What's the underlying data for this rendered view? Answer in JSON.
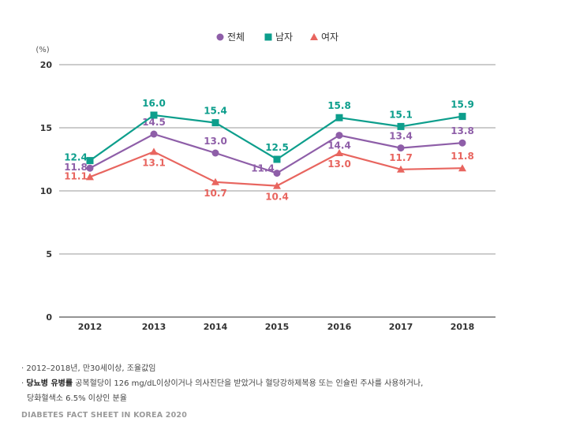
{
  "chart_data": {
    "type": "line",
    "title": "",
    "ylabel": "(%)",
    "xlabel": "",
    "ylim": [
      0,
      20
    ],
    "yticks": [
      "0",
      "5",
      "10",
      "15",
      "20"
    ],
    "categories": [
      "2012",
      "2013",
      "2014",
      "2015",
      "2016",
      "2017",
      "2018"
    ],
    "legend_position": "top-center",
    "series": [
      {
        "name": "전체",
        "color": "#8e5ea8",
        "marker": "circle",
        "values": [
          11.8,
          14.5,
          13.0,
          11.4,
          14.4,
          13.4,
          13.8
        ],
        "labels": [
          "11.8",
          "14.5",
          "13.0",
          "11.4",
          "14.4",
          "13.4",
          "13.8"
        ]
      },
      {
        "name": "남자",
        "color": "#0d9e8c",
        "marker": "square",
        "values": [
          12.4,
          16.0,
          15.4,
          12.5,
          15.8,
          15.1,
          15.9
        ],
        "labels": [
          "12.4",
          "16.0",
          "15.4",
          "12.5",
          "15.8",
          "15.1",
          "15.9"
        ]
      },
      {
        "name": "여자",
        "color": "#e8655f",
        "marker": "triangle",
        "values": [
          11.1,
          13.1,
          10.7,
          10.4,
          13.0,
          11.7,
          11.8
        ],
        "labels": [
          "11.1",
          "13.1",
          "10.7",
          "10.4",
          "13.0",
          "11.7",
          "11.8"
        ]
      }
    ]
  },
  "notes": {
    "line1": "· 2012–2018년, 만30세이상, 조율값임",
    "line2_prefix": "· ",
    "line2_bold": "당뇨병 유병률",
    "line2_rest": " 공복혈당이 126 mg/dL이상이거나 의사진단을 받았거나 혈당강하제복용 또는 인슐린 주사를 사용하거나,",
    "line3": "당화혈색소 6.5% 이상인 분율"
  },
  "footer": "DIABETES FACT SHEET IN KOREA 2020"
}
